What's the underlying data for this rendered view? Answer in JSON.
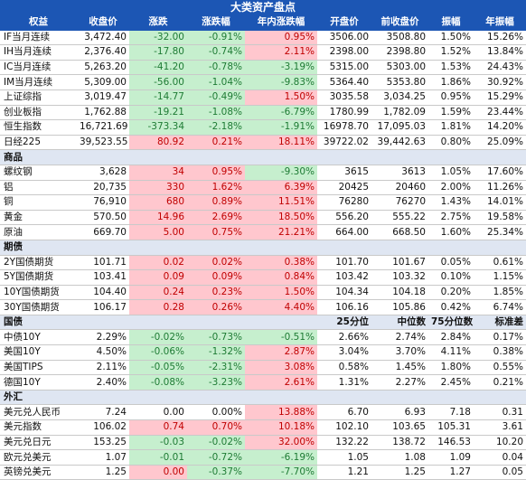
{
  "title": "大类资产盘点",
  "header": [
    "权益",
    "收盘价",
    "涨跌",
    "涨跌幅",
    "年内涨跌幅",
    "开盘价",
    "前收盘价",
    "振幅",
    "年振幅"
  ],
  "equity": [
    [
      "IF当月连续",
      "3,472.40",
      "-32.00",
      "-0.91%",
      "0.95%",
      "3506.00",
      "3508.80",
      "1.50%",
      "15.26%"
    ],
    [
      "IH当月连续",
      "2,376.40",
      "-17.80",
      "-0.74%",
      "2.11%",
      "2398.00",
      "2398.80",
      "1.52%",
      "13.84%"
    ],
    [
      "IC当月连续",
      "5,263.20",
      "-41.20",
      "-0.78%",
      "-3.19%",
      "5315.00",
      "5303.00",
      "1.53%",
      "24.43%"
    ],
    [
      "IM当月连续",
      "5,309.00",
      "-56.00",
      "-1.04%",
      "-9.83%",
      "5364.40",
      "5353.80",
      "1.86%",
      "30.92%"
    ],
    [
      "上证综指",
      "3,019.47",
      "-14.77",
      "-0.49%",
      "1.50%",
      "3035.58",
      "3,034.25",
      "0.95%",
      "15.29%"
    ],
    [
      "创业板指",
      "1,762.88",
      "-19.21",
      "-1.08%",
      "-6.79%",
      "1780.99",
      "1,782.09",
      "1.59%",
      "23.44%"
    ],
    [
      "恒生指数",
      "16,721.69",
      "-373.34",
      "-2.18%",
      "-1.91%",
      "16978.70",
      "17,095.03",
      "1.81%",
      "14.20%"
    ],
    [
      "日经225",
      "39,523.55",
      "80.92",
      "0.21%",
      "18.11%",
      "39722.02",
      "39,442.63",
      "0.80%",
      "25.09%"
    ]
  ],
  "commodity_label": "商品",
  "commodity": [
    [
      "螺纹钢",
      "3,628",
      "34",
      "0.95%",
      "-9.30%",
      "3615",
      "3613",
      "1.05%",
      "17.60%"
    ],
    [
      "铝",
      "20,735",
      "330",
      "1.62%",
      "6.39%",
      "20425",
      "20460",
      "2.00%",
      "11.26%"
    ],
    [
      "铜",
      "76,910",
      "680",
      "0.89%",
      "11.51%",
      "76280",
      "76270",
      "1.43%",
      "14.01%"
    ],
    [
      "黄金",
      "570.50",
      "14.96",
      "2.69%",
      "18.50%",
      "556.20",
      "555.22",
      "2.75%",
      "19.58%"
    ],
    [
      "原油",
      "669.70",
      "5.00",
      "0.75%",
      "21.21%",
      "664.00",
      "668.50",
      "1.60%",
      "25.34%"
    ]
  ],
  "futures_label": "期债",
  "futures": [
    [
      "2Y国债期货",
      "101.71",
      "0.02",
      "0.02%",
      "0.38%",
      "101.70",
      "101.67",
      "0.05%",
      "0.61%"
    ],
    [
      "5Y国债期货",
      "103.41",
      "0.09",
      "0.09%",
      "0.84%",
      "103.42",
      "103.32",
      "0.10%",
      "1.15%"
    ],
    [
      "10Y国债期货",
      "104.40",
      "0.24",
      "0.23%",
      "1.50%",
      "104.34",
      "104.18",
      "0.20%",
      "1.85%"
    ],
    [
      "30Y国债期货",
      "106.17",
      "0.28",
      "0.26%",
      "4.40%",
      "106.16",
      "105.86",
      "0.42%",
      "6.74%"
    ]
  ],
  "bond_label": "国债",
  "bond_header": [
    "25分位",
    "中位数",
    "75分位数",
    "标准差"
  ],
  "bond": [
    [
      "中债10Y",
      "2.29%",
      "-0.02%",
      "-0.73%",
      "-0.51%",
      "2.66%",
      "2.74%",
      "2.84%",
      "0.17%"
    ],
    [
      "美国10Y",
      "4.50%",
      "-0.06%",
      "-1.32%",
      "2.87%",
      "3.04%",
      "3.70%",
      "4.11%",
      "0.38%"
    ],
    [
      "美国TIPS",
      "2.11%",
      "-0.05%",
      "-2.31%",
      "3.08%",
      "0.58%",
      "1.45%",
      "1.80%",
      "0.55%"
    ],
    [
      "德国10Y",
      "2.40%",
      "-0.08%",
      "-3.23%",
      "2.61%",
      "1.31%",
      "2.27%",
      "2.45%",
      "0.21%"
    ]
  ],
  "fx_label": "外汇",
  "fx": [
    [
      "美元兑人民币",
      "7.24",
      "0.00",
      "0.00%",
      "13.88%",
      "6.70",
      "6.93",
      "7.18",
      "0.31"
    ],
    [
      "美元指数",
      "106.02",
      "0.74",
      "0.70%",
      "10.18%",
      "102.10",
      "103.65",
      "105.31",
      "3.61"
    ],
    [
      "美元兑日元",
      "153.25",
      "-0.03",
      "-0.02%",
      "32.00%",
      "132.22",
      "138.72",
      "146.53",
      "10.20"
    ],
    [
      "欧元兑美元",
      "1.07",
      "-0.01",
      "-0.72%",
      "-6.19%",
      "1.05",
      "1.08",
      "1.09",
      "0.04"
    ],
    [
      "英镑兑美元",
      "1.25",
      "0.00",
      "-0.37%",
      "-7.70%",
      "1.21",
      "1.25",
      "1.27",
      "0.05"
    ]
  ],
  "colors": {
    "header": "#1c56b4",
    "up_bg": "#ffc7ce",
    "up_text": "#c00000",
    "down_bg": "#c6efce",
    "down_text": "#1e7b34",
    "section_bg": "#dfe6f2"
  }
}
